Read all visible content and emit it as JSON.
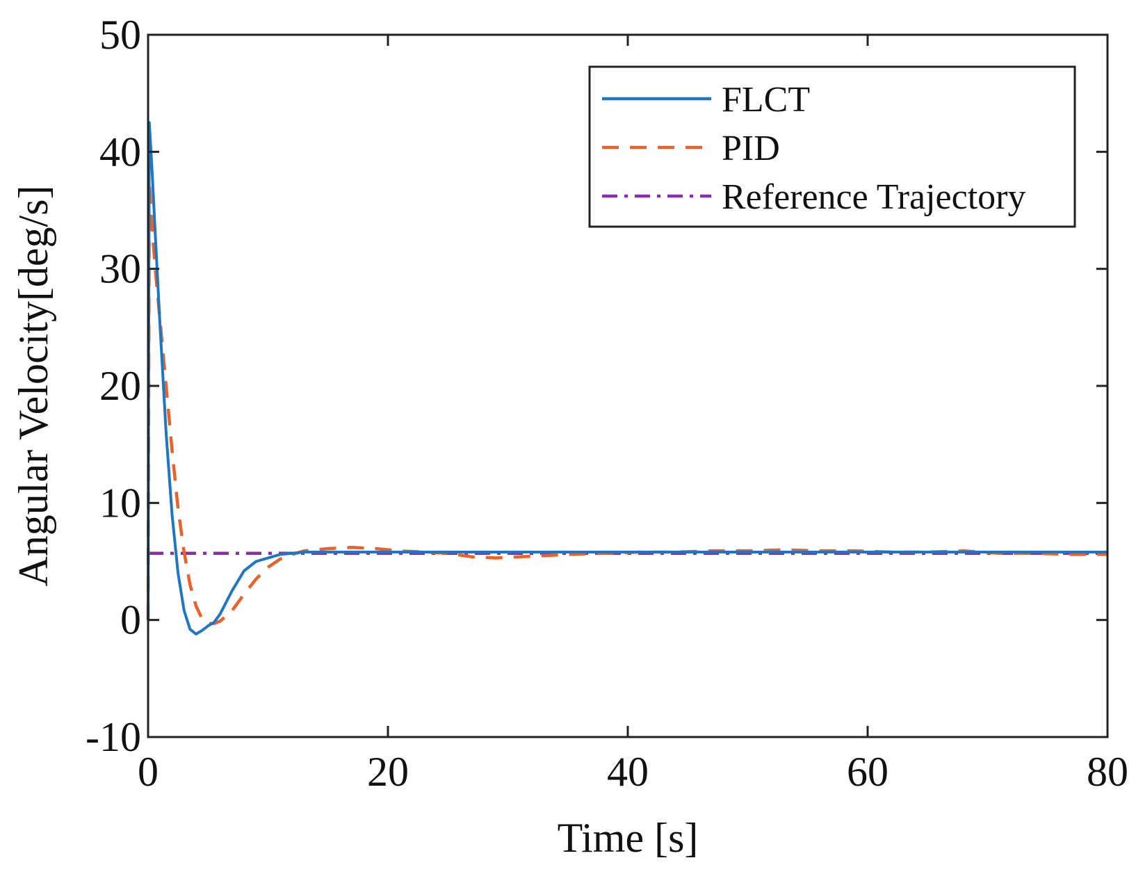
{
  "chart_data": {
    "type": "line",
    "title": "",
    "xlabel": "Time [s]",
    "ylabel": "Angular Velocity[deg/s]",
    "xlim": [
      0,
      80
    ],
    "ylim": [
      -10,
      50
    ],
    "xticks": [
      0,
      20,
      40,
      60,
      80
    ],
    "xtick_labels": [
      "0",
      "20",
      "40",
      "60",
      "80"
    ],
    "yticks": [
      -10,
      0,
      10,
      20,
      30,
      40,
      50
    ],
    "ytick_labels": [
      "-10",
      "0",
      "10",
      "20",
      "30",
      "40",
      "50"
    ],
    "grid": false,
    "legend_position": "top-right",
    "series": [
      {
        "name": "FLCT",
        "color": "#1f77c4",
        "style": "solid",
        "x": [
          0,
          0.1,
          0.3,
          0.6,
          1,
          1.5,
          2,
          2.5,
          3,
          3.5,
          4,
          4.5,
          5,
          5.5,
          6,
          7,
          8,
          9,
          10,
          11,
          12,
          13,
          15,
          20,
          30,
          40,
          50,
          60,
          70,
          80
        ],
        "y": [
          0,
          42.5,
          39,
          33,
          25,
          16,
          9,
          4,
          0.8,
          -0.8,
          -1.2,
          -0.9,
          -0.5,
          -0.2,
          0.5,
          2.5,
          4.2,
          5.0,
          5.3,
          5.6,
          5.7,
          5.8,
          5.8,
          5.8,
          5.8,
          5.8,
          5.8,
          5.8,
          5.8,
          5.8
        ]
      },
      {
        "name": "PID",
        "color": "#e8622a",
        "style": "dashed",
        "x": [
          0,
          0.1,
          0.3,
          0.6,
          1,
          1.5,
          2,
          2.5,
          3,
          3.5,
          4,
          4.5,
          5,
          5.5,
          6,
          7,
          8,
          9,
          10,
          11,
          12,
          13,
          14,
          15,
          17,
          19,
          21,
          23,
          25,
          27,
          29,
          31,
          33,
          35,
          38,
          41,
          44,
          47,
          50,
          53,
          56,
          59,
          62,
          65,
          68,
          71,
          74,
          77,
          80
        ],
        "y": [
          0,
          37.5,
          34,
          30,
          25.5,
          20,
          14.5,
          9.5,
          5.8,
          3,
          1.2,
          0.1,
          -0.3,
          -0.3,
          -0.1,
          0.8,
          2.2,
          3.5,
          4.5,
          5.2,
          5.6,
          5.9,
          6.0,
          6.1,
          6.2,
          6.1,
          5.9,
          5.8,
          5.7,
          5.4,
          5.3,
          5.4,
          5.5,
          5.6,
          5.7,
          5.8,
          5.8,
          5.9,
          5.9,
          6.0,
          5.9,
          5.9,
          5.8,
          5.8,
          5.9,
          5.7,
          5.7,
          5.6,
          5.6
        ]
      },
      {
        "name": "Reference Trajectory",
        "color": "#8b2fa8",
        "style": "dashdot",
        "x": [
          0,
          80
        ],
        "y": [
          5.7,
          5.7
        ]
      }
    ]
  }
}
